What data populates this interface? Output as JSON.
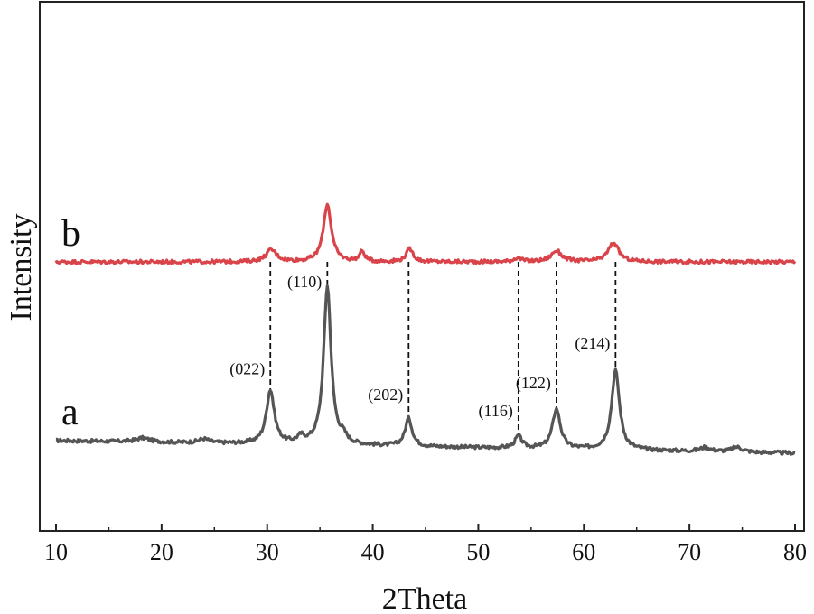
{
  "chart_data": {
    "type": "line",
    "xlabel": "2Theta",
    "ylabel": "Intensity",
    "xlim": [
      10,
      80
    ],
    "xticks": [
      10,
      20,
      30,
      40,
      50,
      60,
      70,
      80
    ],
    "grid": false,
    "legend": "none",
    "y_ticks_labeled": false,
    "series": [
      {
        "name": "a",
        "color": "#555555",
        "baseline": 0,
        "peaks": [
          {
            "x": 30.3,
            "h": 0.54,
            "w": 0.45
          },
          {
            "x": 35.7,
            "h": 1.6,
            "w": 0.42
          },
          {
            "x": 43.4,
            "h": 0.28,
            "w": 0.4
          },
          {
            "x": 53.8,
            "h": 0.12,
            "w": 0.4
          },
          {
            "x": 57.4,
            "h": 0.4,
            "w": 0.45
          },
          {
            "x": 63.0,
            "h": 0.8,
            "w": 0.45
          },
          {
            "x": 33.2,
            "h": 0.06,
            "w": 0.4
          },
          {
            "x": 37.2,
            "h": 0.06,
            "w": 0.4
          },
          {
            "x": 18.2,
            "h": 0.04,
            "w": 0.8
          },
          {
            "x": 24.0,
            "h": 0.04,
            "w": 0.6
          },
          {
            "x": 71.5,
            "h": 0.04,
            "w": 0.6
          },
          {
            "x": 74.5,
            "h": 0.05,
            "w": 0.6
          }
        ],
        "slope": -0.0018
      },
      {
        "name": "b",
        "color": "#d9444a",
        "baseline": 2.0,
        "peaks": [
          {
            "x": 30.4,
            "h": 0.12,
            "w": 0.6
          },
          {
            "x": 35.7,
            "h": 0.58,
            "w": 0.45
          },
          {
            "x": 39.0,
            "h": 0.1,
            "w": 0.3
          },
          {
            "x": 43.5,
            "h": 0.13,
            "w": 0.4
          },
          {
            "x": 53.7,
            "h": 0.04,
            "w": 0.4
          },
          {
            "x": 57.4,
            "h": 0.11,
            "w": 0.6
          },
          {
            "x": 62.8,
            "h": 0.19,
            "w": 0.6
          }
        ],
        "slope": 0
      }
    ],
    "annotations": [
      {
        "label": "(022)",
        "x": 30.3
      },
      {
        "label": "(110)",
        "x": 35.7
      },
      {
        "label": "(202)",
        "x": 43.4
      },
      {
        "label": "(116)",
        "x": 53.8
      },
      {
        "label": "(122)",
        "x": 57.4
      },
      {
        "label": "(214)",
        "x": 63.0
      }
    ]
  }
}
